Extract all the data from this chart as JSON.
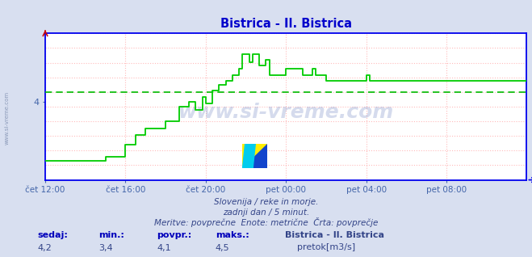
{
  "title": "Bistrica - Il. Bistrica",
  "title_color": "#0000cc",
  "bg_color": "#d8dff0",
  "plot_bg_color": "#ffffff",
  "line_color": "#00cc00",
  "avg_line_color": "#00bb00",
  "grid_color": "#ffbbbb",
  "grid_style": ":",
  "axis_color": "#0000ee",
  "tick_color": "#4466aa",
  "x_min": 0,
  "x_max": 288,
  "y_min": 3.18,
  "y_max": 4.72,
  "avg_value": 4.1,
  "ytick_val": 4.0,
  "ytick_label": "4",
  "xtick_labels": [
    "čet 12:00",
    "čet 16:00",
    "čet 20:00",
    "pet 00:00",
    "pet 04:00",
    "pet 08:00"
  ],
  "xtick_positions": [
    0,
    48,
    96,
    144,
    192,
    240
  ],
  "subtitle1": "Slovenija / reke in morje.",
  "subtitle2": "zadnji dan / 5 minut.",
  "subtitle3": "Meritve: povprečne  Enote: metrične  Črta: povprečje",
  "legend_title": "Bistrica - Il. Bistrica",
  "legend_label": "pretok[m3/s]",
  "stat_labels": [
    "sedaj:",
    "min.:",
    "povpr.:",
    "maks.:"
  ],
  "stat_values": [
    "4,2",
    "3,4",
    "4,1",
    "4,5"
  ],
  "watermark": "www.si-vreme.com",
  "side_text": "www.si-vreme.com",
  "flow_data": [
    [
      0,
      3.38
    ],
    [
      36,
      3.38
    ],
    [
      36,
      3.42
    ],
    [
      48,
      3.42
    ],
    [
      48,
      3.55
    ],
    [
      54,
      3.55
    ],
    [
      54,
      3.65
    ],
    [
      60,
      3.65
    ],
    [
      60,
      3.72
    ],
    [
      72,
      3.72
    ],
    [
      72,
      3.8
    ],
    [
      80,
      3.8
    ],
    [
      80,
      3.95
    ],
    [
      86,
      3.95
    ],
    [
      86,
      4.0
    ],
    [
      90,
      4.0
    ],
    [
      90,
      3.92
    ],
    [
      94,
      3.92
    ],
    [
      94,
      4.05
    ],
    [
      96,
      4.05
    ],
    [
      96,
      3.98
    ],
    [
      100,
      3.98
    ],
    [
      100,
      4.12
    ],
    [
      104,
      4.12
    ],
    [
      104,
      4.18
    ],
    [
      108,
      4.18
    ],
    [
      108,
      4.22
    ],
    [
      112,
      4.22
    ],
    [
      112,
      4.28
    ],
    [
      116,
      4.28
    ],
    [
      116,
      4.35
    ],
    [
      118,
      4.35
    ],
    [
      118,
      4.5
    ],
    [
      122,
      4.5
    ],
    [
      122,
      4.42
    ],
    [
      124,
      4.42
    ],
    [
      124,
      4.5
    ],
    [
      128,
      4.5
    ],
    [
      128,
      4.38
    ],
    [
      132,
      4.38
    ],
    [
      132,
      4.44
    ],
    [
      134,
      4.44
    ],
    [
      134,
      4.28
    ],
    [
      144,
      4.28
    ],
    [
      144,
      4.35
    ],
    [
      154,
      4.35
    ],
    [
      154,
      4.28
    ],
    [
      160,
      4.28
    ],
    [
      160,
      4.35
    ],
    [
      162,
      4.35
    ],
    [
      162,
      4.28
    ],
    [
      168,
      4.28
    ],
    [
      168,
      4.22
    ],
    [
      192,
      4.22
    ],
    [
      192,
      4.28
    ],
    [
      194,
      4.28
    ],
    [
      194,
      4.22
    ],
    [
      288,
      4.22
    ]
  ]
}
